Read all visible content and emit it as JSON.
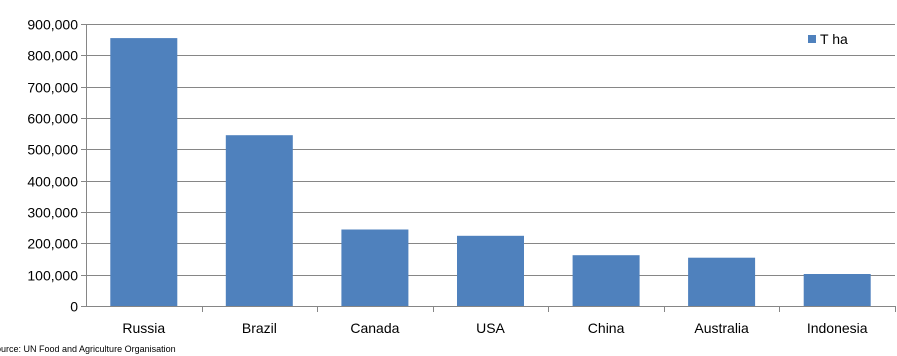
{
  "chart_data": {
    "type": "bar",
    "categories": [
      "Russia",
      "Brazil",
      "Canada",
      "USA",
      "China",
      "Australia",
      "Indonesia"
    ],
    "series": [
      {
        "name": "T ha",
        "values": [
          855000,
          545000,
          244000,
          224000,
          162000,
          154000,
          102000
        ],
        "color": "#4f81bd"
      }
    ],
    "ylim": [
      0,
      900000
    ],
    "y_ticks": [
      0,
      100000,
      200000,
      300000,
      400000,
      500000,
      600000,
      700000,
      800000,
      900000
    ],
    "y_tick_labels": [
      "0",
      "100,000",
      "200,000",
      "300,000",
      "400,000",
      "500,000",
      "600,000",
      "700,000",
      "800,000",
      "900,000"
    ],
    "grid": true,
    "legend": "top-right",
    "source_note": "Source: UN Food and Agriculture Organisation"
  },
  "colors": {
    "bar": "#4f81bd",
    "grid": "#868686",
    "axis": "#868686"
  }
}
